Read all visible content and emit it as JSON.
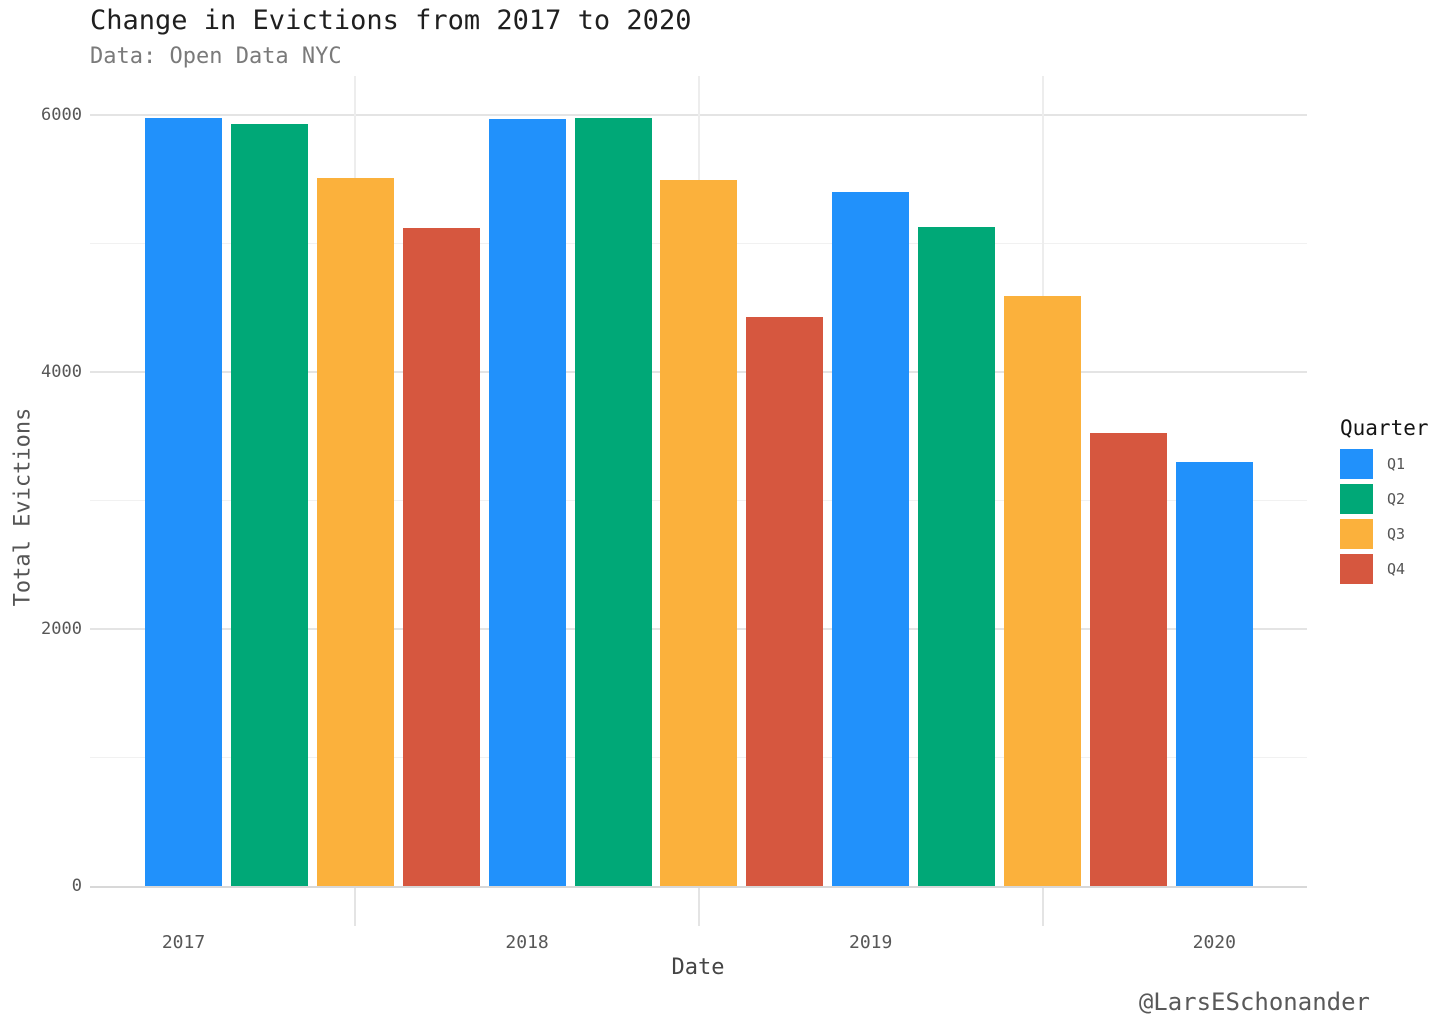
{
  "chart_data": {
    "type": "bar",
    "title": "Change in Evictions from 2017 to 2020",
    "subtitle": "Data: Open Data NYC",
    "xlabel": "Date",
    "ylabel": "Total Evictions",
    "watermark": "@LarsESchonander",
    "categories": [
      "2017",
      "2018",
      "2019",
      "2020"
    ],
    "series": [
      {
        "name": "Q1",
        "color": "#2191FB",
        "values": [
          5975,
          5965,
          5395,
          3300
        ]
      },
      {
        "name": "Q2",
        "color": "#00A877",
        "values": [
          5930,
          5975,
          5125,
          null
        ]
      },
      {
        "name": "Q3",
        "color": "#FBB13C",
        "values": [
          5510,
          5490,
          4585,
          null
        ]
      },
      {
        "name": "Q4",
        "color": "#D6573F",
        "values": [
          5115,
          4425,
          3520,
          null
        ]
      }
    ],
    "legend": {
      "title": "Quarter",
      "position": "right"
    },
    "axes": {
      "x_tick_labels": [
        "2017",
        "2018",
        "2019",
        "2020"
      ],
      "y_tick_values": [
        0,
        2000,
        4000,
        6000
      ],
      "y_minor_gridlines": [
        1000,
        3000,
        5000
      ],
      "ylim": [
        0,
        6300
      ],
      "grid": "on"
    }
  },
  "colors": {
    "background": "#ffffff",
    "title_text": "#1f1f1f",
    "subtitle_text": "#7a7a7a",
    "tick_label_text": "#575757",
    "axis_title_text": "#454545",
    "legend_title_text": "#141414",
    "legend_label_text": "#555555",
    "watermark_text": "#595959",
    "grid_major": "#e4e4e4",
    "grid_minor": "#f1f1f1",
    "grid_vertical": "#ededed",
    "axis_line": "#d8d8d8",
    "q1": "#2191FB",
    "q2": "#00A877",
    "q3": "#FBB13C",
    "q4": "#D6573F"
  }
}
